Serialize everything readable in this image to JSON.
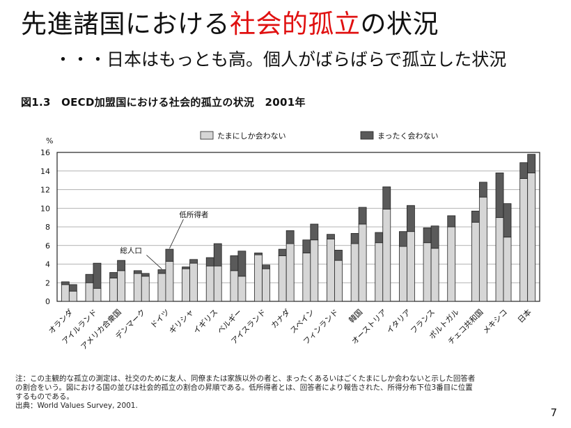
{
  "slide": {
    "title_prefix": "先進諸国における",
    "title_highlight": "社会的孤立",
    "title_suffix": "の状況",
    "subtitle": "・・・日本はもっとも高。個人がばらばらで孤立した状況",
    "figure_caption": "図1.3　OECD加盟国における社会的孤立の状況　2001年",
    "notes": [
      "注：この主観的な孤立の測定は、社交のために友人、同僚または家族以外の者と、まったくあるいはごくたまにしか会わないと示した回答者",
      "の割合をいう。図における国の並びは社会的孤立の割合の昇順である。低所得者とは、回答者により報告された、所得分布下位3番目に位置",
      "するものである。",
      "出典：World Values Survey, 2001."
    ],
    "page_number": "7"
  },
  "chart_data": {
    "type": "bar",
    "ylabel": "%",
    "ylim": [
      0,
      16
    ],
    "yticks": [
      0,
      2,
      4,
      6,
      8,
      10,
      12,
      14,
      16
    ],
    "grid": true,
    "legend_position": "top",
    "colors": {
      "light": "#d6d6d6",
      "dark": "#5a5a5a",
      "frame": "#222222"
    },
    "series": [
      {
        "name": "たまにしか会わない",
        "color": "#d6d6d6"
      },
      {
        "name": "まったく会わない",
        "color": "#5a5a5a"
      }
    ],
    "bar_groups": [
      "総人口",
      "低所得者"
    ],
    "annotations": [
      {
        "text": "総人口",
        "country": "ドイツ",
        "bar": 0
      },
      {
        "text": "低所得者",
        "country": "ドイツ",
        "bar": 1
      }
    ],
    "categories": [
      "オランダ",
      "アイルランド",
      "アメリカ合衆国",
      "デンマーク",
      "ドイツ",
      "ギリシャ",
      "イギリス",
      "ベルギー",
      "アイスランド",
      "カナダ",
      "スペイン",
      "フィンランド",
      "韓国",
      "オーストリア",
      "イタリア",
      "フランス",
      "ポルトガル",
      "チェコ共和国",
      "メキシコ",
      "日本"
    ],
    "total_population": {
      "occasionally": [
        1.8,
        2.0,
        2.5,
        3.0,
        3.0,
        3.5,
        3.8,
        3.3,
        5.0,
        4.9,
        5.2,
        6.7,
        6.2,
        6.3,
        5.9,
        6.3,
        8.0,
        8.5,
        9.0,
        13.2
      ],
      "never": [
        0.3,
        0.9,
        0.6,
        0.3,
        0.4,
        0.2,
        0.9,
        1.6,
        0.2,
        0.7,
        1.4,
        0.5,
        1.1,
        1.1,
        1.6,
        1.6,
        1.2,
        1.2,
        4.8,
        1.7
      ]
    },
    "low_income": {
      "occasionally": [
        1.1,
        1.4,
        3.3,
        2.7,
        4.3,
        4.1,
        3.8,
        2.7,
        3.5,
        6.2,
        6.6,
        4.4,
        8.3,
        9.9,
        7.5,
        5.7,
        null,
        11.2,
        6.9,
        13.8
      ],
      "never": [
        0.7,
        2.7,
        1.1,
        0.3,
        1.3,
        0.4,
        2.4,
        2.7,
        0.4,
        1.4,
        1.7,
        1.1,
        1.8,
        2.4,
        2.8,
        2.4,
        null,
        1.6,
        3.6,
        2.0
      ]
    }
  }
}
